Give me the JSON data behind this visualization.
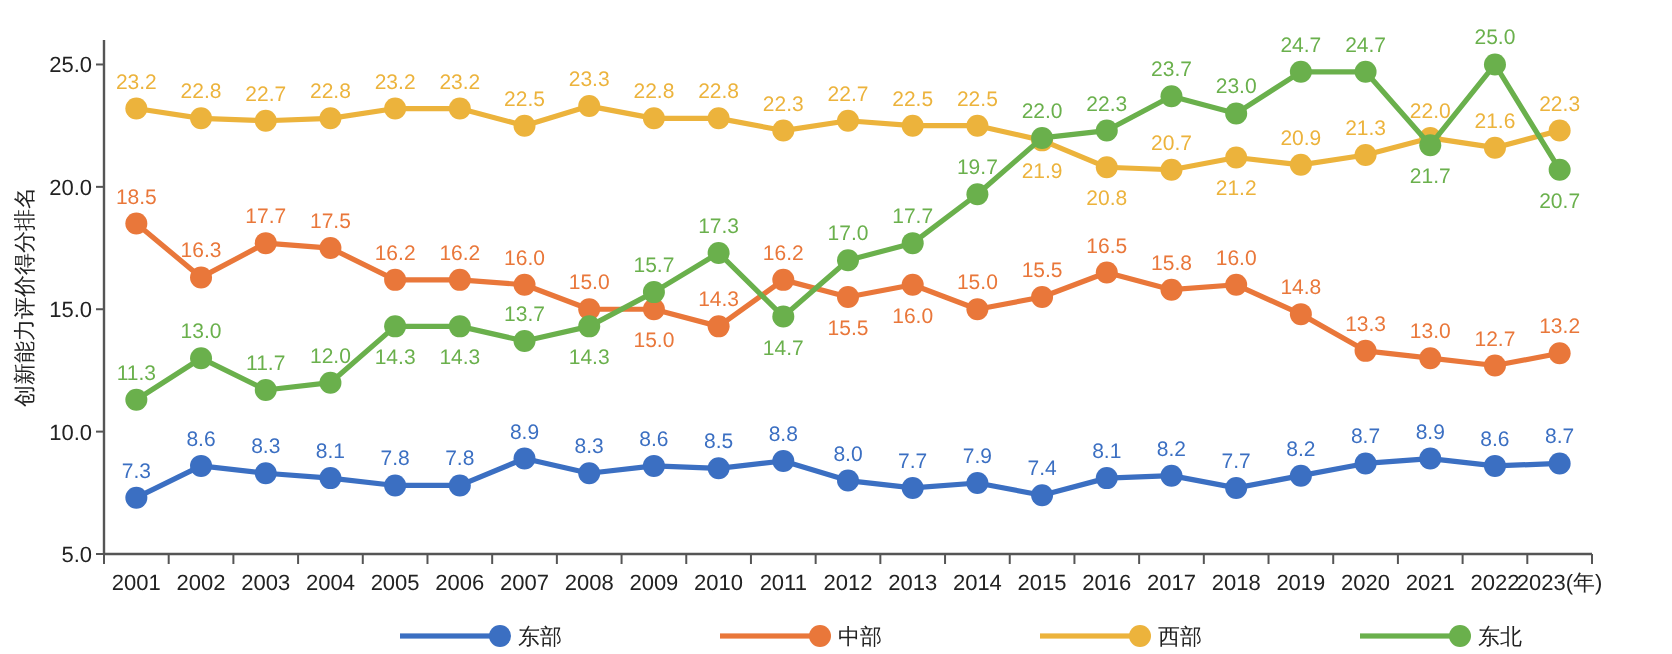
{
  "chart_data": {
    "type": "line",
    "ylabel": "创新能力评价得分排名",
    "categories": [
      "2001",
      "2002",
      "2003",
      "2004",
      "2005",
      "2006",
      "2007",
      "2008",
      "2009",
      "2010",
      "2011",
      "2012",
      "2013",
      "2014",
      "2015",
      "2016",
      "2017",
      "2018",
      "2019",
      "2020",
      "2021",
      "2022",
      "2023(年)"
    ],
    "series": [
      {
        "name": "东部",
        "color": "#3b6fc2",
        "values": [
          7.3,
          8.6,
          8.3,
          8.1,
          7.8,
          7.8,
          8.9,
          8.3,
          8.6,
          8.5,
          8.8,
          8.0,
          7.7,
          7.9,
          7.4,
          8.1,
          8.2,
          7.7,
          8.2,
          8.7,
          8.9,
          8.6,
          8.7
        ],
        "value_labels": [
          "7.3",
          "8.6",
          "8.3",
          "8.1",
          "7.8",
          "7.8",
          "8.9",
          "8.3",
          "8.6",
          "8.5",
          "8.8",
          "8.0",
          "7.7",
          "7.9",
          "7.4",
          "8.1",
          "8.2",
          "7.7",
          "8.2",
          "8.7",
          "8.9",
          "8.6",
          "8.7"
        ]
      },
      {
        "name": "中部",
        "color": "#e9773a",
        "values": [
          18.5,
          16.3,
          17.7,
          17.5,
          16.2,
          16.2,
          16.0,
          15.0,
          15.0,
          14.3,
          16.2,
          15.5,
          16.0,
          15.0,
          15.5,
          16.5,
          15.8,
          16.0,
          14.8,
          13.3,
          13.0,
          12.7,
          13.2
        ],
        "value_labels": [
          "18.5",
          "16.3",
          "17.7",
          "17.5",
          "16.2",
          "16.2",
          "16.0",
          "15.0",
          "15.0",
          "14.3",
          "16.2",
          "15.5",
          "16.0",
          "15.0",
          "15.5",
          "16.5",
          "15.8",
          "16.0",
          "14.8",
          "13.3",
          "13.0",
          "12.7",
          "13.2"
        ]
      },
      {
        "name": "西部",
        "color": "#ecb33c",
        "values": [
          23.2,
          22.8,
          22.7,
          22.8,
          23.2,
          23.2,
          22.5,
          23.3,
          22.8,
          22.8,
          22.3,
          22.7,
          22.5,
          22.5,
          21.9,
          20.8,
          20.7,
          21.2,
          20.9,
          21.3,
          22.0,
          21.6,
          22.3
        ],
        "value_labels": [
          "23.2",
          "22.8",
          "22.7",
          "22.8",
          "23.2",
          "23.2",
          "22.5",
          "23.3",
          "22.8",
          "22.8",
          "22.3",
          "22.7",
          "22.5",
          "22.5",
          "21.9",
          "20.8",
          "20.7",
          "21.2",
          "20.9",
          "21.3",
          "22.0",
          "21.6",
          "22.3"
        ]
      },
      {
        "name": "东北",
        "color": "#6ab04c",
        "values": [
          11.3,
          13.0,
          11.7,
          12.0,
          14.3,
          14.3,
          13.7,
          14.3,
          15.7,
          17.3,
          14.7,
          17.0,
          17.7,
          19.7,
          22.0,
          22.3,
          23.7,
          23.0,
          24.7,
          24.7,
          21.7,
          25.0,
          20.7
        ],
        "value_labels": [
          "11.3",
          "13.0",
          "11.7",
          "12.0",
          "14.3",
          "14.3",
          "13.7",
          "14.3",
          "15.7",
          "17.3",
          "14.7",
          "17.0",
          "17.7",
          "19.7",
          "22.0",
          "22.3",
          "23.7",
          "23.0",
          "24.7",
          "24.7",
          "21.7",
          "25.0",
          "20.7"
        ]
      }
    ],
    "ylim": [
      5,
      26
    ],
    "yticks": [
      {
        "value": 5,
        "label": "5.0"
      },
      {
        "value": 10,
        "label": "10.0"
      },
      {
        "value": 15,
        "label": "15.0"
      },
      {
        "value": 20,
        "label": "20.0"
      },
      {
        "value": 25,
        "label": "25.0"
      }
    ],
    "marker": "circle",
    "legend": "bottom",
    "grid": false
  }
}
